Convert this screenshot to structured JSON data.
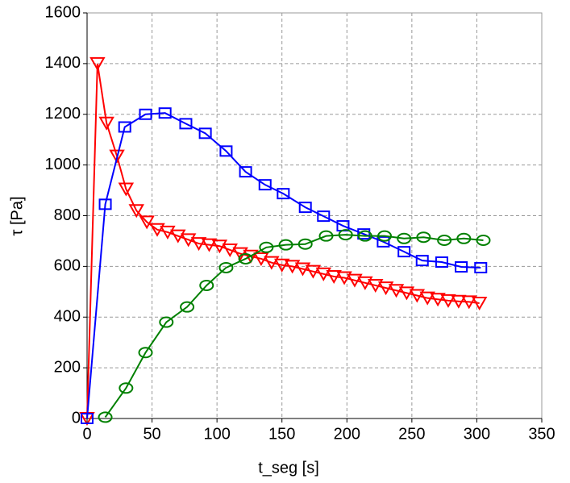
{
  "chart_data": {
    "type": "line",
    "x_label": "t_seg  [s]",
    "y_label": "τ  [Pa]",
    "xlim": [
      0,
      350
    ],
    "xticks": [
      0,
      50,
      100,
      150,
      200,
      250,
      300,
      350
    ],
    "ylim": [
      0,
      1600
    ],
    "yticks": [
      0,
      200,
      400,
      600,
      800,
      1000,
      1200,
      1400,
      1600
    ],
    "grid": true,
    "series": [
      {
        "color": "#ff0000",
        "marker": "triangle-down",
        "x": [
          0,
          8,
          15,
          23,
          30,
          38,
          46,
          54,
          62,
          70,
          78,
          86,
          94,
          102,
          110,
          118,
          126,
          134,
          142,
          150,
          158,
          166,
          174,
          182,
          190,
          198,
          206,
          214,
          222,
          230,
          238,
          246,
          254,
          262,
          270,
          278,
          286,
          294,
          302
        ],
        "values": [
          0,
          1400,
          1165,
          1035,
          905,
          820,
          775,
          745,
          735,
          720,
          705,
          690,
          685,
          680,
          665,
          650,
          640,
          630,
          615,
          605,
          600,
          590,
          580,
          570,
          560,
          555,
          545,
          535,
          525,
          515,
          505,
          495,
          485,
          475,
          470,
          465,
          462,
          460,
          455
        ]
      },
      {
        "color": "#0000ff",
        "marker": "square",
        "x": [
          0,
          14,
          29,
          45,
          60,
          76,
          91,
          107,
          122,
          137,
          151,
          168,
          182,
          197,
          213,
          228,
          244,
          258,
          273,
          288,
          303
        ],
        "values": [
          0,
          845,
          1150,
          1200,
          1205,
          1163,
          1125,
          1055,
          973,
          922,
          887,
          833,
          798,
          760,
          728,
          697,
          658,
          623,
          617,
          598,
          595
        ]
      },
      {
        "color": "#008000",
        "marker": "ellipse",
        "x": [
          14,
          30,
          45,
          61,
          77,
          92,
          107,
          122,
          138,
          153,
          168,
          184,
          199,
          214,
          229,
          244,
          259,
          275,
          290,
          305
        ],
        "values": [
          5,
          120,
          260,
          380,
          440,
          525,
          595,
          630,
          675,
          685,
          688,
          720,
          725,
          720,
          720,
          710,
          715,
          703,
          710,
          703
        ]
      }
    ]
  }
}
